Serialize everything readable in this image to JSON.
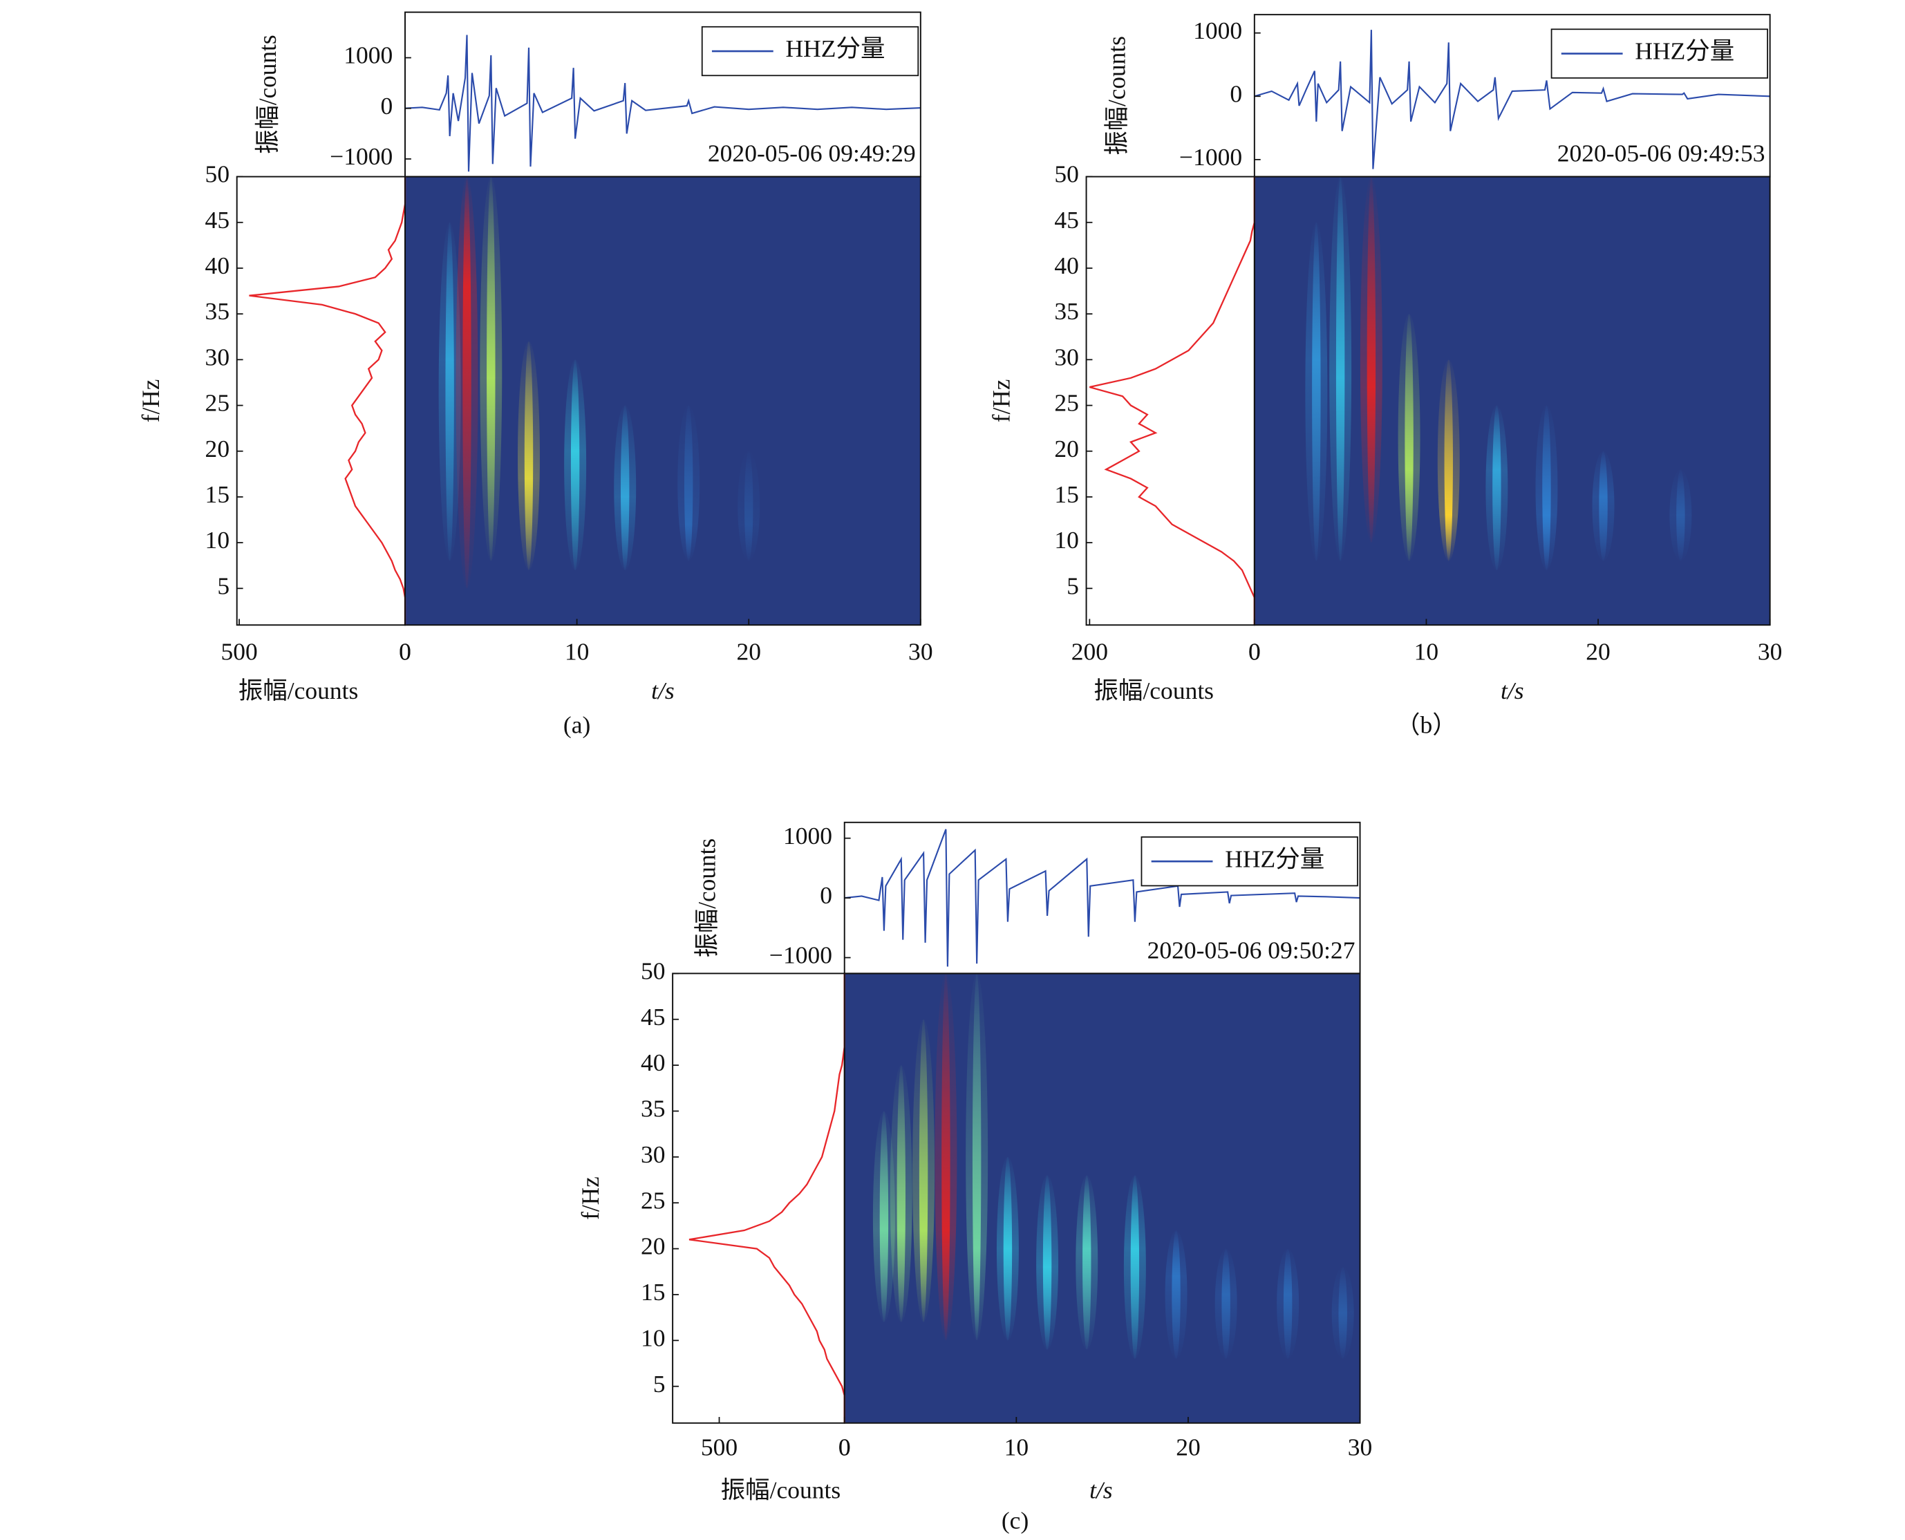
{
  "chart_data": [
    {
      "type": "spectrogram",
      "label": "(a)",
      "xlabel": "t/s",
      "ylabel": "f/Hz",
      "xlim": [
        0,
        30
      ],
      "ylim": [
        1,
        50
      ],
      "xticks": [
        0,
        10,
        20,
        30
      ],
      "yticks": [
        5,
        10,
        15,
        20,
        25,
        30,
        35,
        40,
        45,
        50
      ],
      "bursts": [
        {
          "t": 2.6,
          "f": [
            8,
            45
          ],
          "peak": 30,
          "level": 0.4
        },
        {
          "t": 3.6,
          "f": [
            5,
            50
          ],
          "peak": 38,
          "level": 1.0
        },
        {
          "t": 5.0,
          "f": [
            8,
            50
          ],
          "peak": 28,
          "level": 0.7
        },
        {
          "t": 7.2,
          "f": [
            7,
            32
          ],
          "peak": 17,
          "level": 0.8
        },
        {
          "t": 9.9,
          "f": [
            7,
            30
          ],
          "peak": 20,
          "level": 0.5
        },
        {
          "t": 12.8,
          "f": [
            7,
            25
          ],
          "peak": 15,
          "level": 0.4
        },
        {
          "t": 16.5,
          "f": [
            8,
            25
          ],
          "peak": 12,
          "level": 0.2
        },
        {
          "t": 20,
          "f": [
            8,
            20
          ],
          "peak": 12,
          "level": 0.1
        }
      ],
      "waveform": {
        "type": "line",
        "ylabel": "振幅/counts",
        "annotation": "2020-05-06 09:49:29",
        "legend": "upper right",
        "ylim": [
          -1350,
          1900
        ],
        "yticks": [
          {
            "value": -1000,
            "label": "−1000"
          },
          0,
          1000
        ],
        "series": [
          {
            "name": "HHZ分量",
            "color": "#2b4bab",
            "x": [
              0,
              1,
              2,
              2.4,
              2.5,
              2.6,
              2.8,
              3.1,
              3.5,
              3.6,
              3.7,
              3.9,
              4.3,
              4.9,
              5.0,
              5.1,
              5.3,
              5.8,
              7.1,
              7.2,
              7.3,
              7.5,
              8.0,
              9.7,
              9.8,
              9.9,
              10.2,
              11.0,
              12.7,
              12.8,
              12.9,
              13.2,
              14.0,
              16.4,
              16.5,
              16.7,
              18,
              20,
              22,
              24,
              26,
              28,
              30
            ],
            "values": [
              0,
              20,
              -30,
              300,
              650,
              -550,
              300,
              -250,
              600,
              1450,
              -1250,
              700,
              -300,
              250,
              1050,
              -1100,
              400,
              -150,
              100,
              1200,
              -1150,
              300,
              -80,
              200,
              800,
              -600,
              200,
              -50,
              150,
              500,
              -500,
              150,
              -40,
              50,
              150,
              -100,
              30,
              -20,
              20,
              -20,
              20,
              -20,
              10
            ]
          }
        ]
      },
      "spectrum": {
        "type": "line",
        "xlabel": "振幅/counts",
        "color": "#e8262a",
        "xlim": [
          507,
          0
        ],
        "xticks": [
          500,
          0
        ],
        "y": [
          1,
          2,
          3,
          4,
          5,
          6,
          7,
          8,
          9,
          10,
          11,
          12,
          13,
          14,
          15,
          16,
          17,
          18,
          19,
          20,
          21,
          22,
          23,
          24,
          25,
          26,
          27,
          28,
          29,
          30,
          31,
          32,
          33,
          34,
          35,
          36,
          37,
          38,
          39,
          40,
          41,
          42,
          43,
          44,
          45,
          46,
          47,
          48,
          49,
          50
        ],
        "values": [
          0,
          0,
          0,
          0,
          5,
          15,
          30,
          40,
          55,
          70,
          90,
          110,
          130,
          150,
          160,
          170,
          180,
          160,
          170,
          150,
          140,
          120,
          130,
          150,
          160,
          140,
          120,
          100,
          110,
          80,
          70,
          90,
          60,
          80,
          150,
          250,
          470,
          200,
          90,
          60,
          40,
          50,
          30,
          20,
          10,
          5,
          0,
          0,
          0,
          0
        ]
      }
    },
    {
      "type": "spectrogram",
      "label": "（b）",
      "xlabel": "t/s",
      "ylabel": "f/Hz",
      "xlim": [
        0,
        30
      ],
      "ylim": [
        1,
        50
      ],
      "xticks": [
        0,
        10,
        20,
        30
      ],
      "yticks": [
        5,
        10,
        15,
        20,
        25,
        30,
        35,
        40,
        45,
        50
      ],
      "bursts": [
        {
          "t": 3.6,
          "f": [
            8,
            45
          ],
          "peak": 30,
          "level": 0.35
        },
        {
          "t": 5.0,
          "f": [
            8,
            50
          ],
          "peak": 28,
          "level": 0.45
        },
        {
          "t": 6.8,
          "f": [
            10,
            50
          ],
          "peak": 27,
          "level": 1.0
        },
        {
          "t": 9.0,
          "f": [
            8,
            35
          ],
          "peak": 18,
          "level": 0.7
        },
        {
          "t": 11.3,
          "f": [
            8,
            30
          ],
          "peak": 13,
          "level": 0.85
        },
        {
          "t": 14.1,
          "f": [
            7,
            25
          ],
          "peak": 18,
          "level": 0.4
        },
        {
          "t": 17,
          "f": [
            7,
            25
          ],
          "peak": 13,
          "level": 0.3
        },
        {
          "t": 20.3,
          "f": [
            8,
            20
          ],
          "peak": 15,
          "level": 0.25
        },
        {
          "t": 24.8,
          "f": [
            8,
            18
          ],
          "peak": 13,
          "level": 0.15
        }
      ],
      "waveform": {
        "type": "line",
        "ylabel": "振幅/counts",
        "annotation": "2020-05-06 09:49:53",
        "legend": "upper right",
        "ylim": [
          -1270,
          1290
        ],
        "yticks": [
          {
            "value": -1000,
            "label": "−1000"
          },
          0,
          1000
        ],
        "series": [
          {
            "name": "HHZ分量",
            "color": "#2b4bab",
            "x": [
              0,
              1,
              2,
              2.5,
              2.6,
              3,
              3.5,
              3.6,
              3.7,
              4.2,
              4.9,
              5.0,
              5.1,
              5.6,
              6.7,
              6.8,
              6.9,
              7.3,
              8.0,
              8.9,
              9.0,
              9.1,
              9.6,
              10.5,
              11.2,
              11.3,
              11.4,
              12,
              13,
              13.9,
              14.0,
              14.2,
              15,
              16.9,
              17.0,
              17.2,
              18.5,
              20.2,
              20.3,
              20.5,
              22,
              24.9,
              25,
              25.2,
              27,
              30
            ],
            "values": [
              0,
              80,
              -60,
              200,
              -150,
              100,
              400,
              -400,
              200,
              -100,
              100,
              550,
              -550,
              150,
              -100,
              1050,
              -1150,
              300,
              -120,
              100,
              550,
              -400,
              150,
              -100,
              200,
              850,
              -550,
              200,
              -80,
              100,
              300,
              -350,
              80,
              100,
              250,
              -200,
              60,
              50,
              120,
              -80,
              40,
              30,
              50,
              -40,
              30,
              0
            ]
          }
        ]
      },
      "spectrum": {
        "type": "line",
        "xlabel": "振幅/counts",
        "color": "#e8262a",
        "xlim": [
          204,
          0
        ],
        "xticks": [
          200,
          0
        ],
        "y": [
          1,
          2,
          3,
          4,
          5,
          6,
          7,
          8,
          9,
          10,
          11,
          12,
          13,
          14,
          15,
          16,
          17,
          18,
          19,
          20,
          21,
          22,
          23,
          24,
          25,
          26,
          27,
          28,
          29,
          30,
          31,
          32,
          33,
          34,
          35,
          36,
          37,
          38,
          39,
          40,
          41,
          42,
          43,
          44,
          45,
          46,
          47,
          48,
          49,
          50
        ],
        "values": [
          0,
          0,
          0,
          0,
          5,
          10,
          15,
          25,
          40,
          60,
          80,
          100,
          110,
          120,
          140,
          130,
          150,
          180,
          160,
          140,
          150,
          120,
          140,
          130,
          150,
          160,
          200,
          150,
          120,
          100,
          80,
          70,
          60,
          50,
          45,
          40,
          35,
          30,
          25,
          20,
          15,
          10,
          5,
          3,
          0,
          0,
          0,
          0,
          0,
          0
        ]
      }
    },
    {
      "type": "spectrogram",
      "label": "(c)",
      "xlabel": "t/s",
      "ylabel": "f/Hz",
      "xlim": [
        0,
        30
      ],
      "ylim": [
        1,
        50
      ],
      "xticks": [
        0,
        10,
        20,
        30
      ],
      "yticks": [
        5,
        10,
        15,
        20,
        25,
        30,
        35,
        40,
        45,
        50
      ],
      "bursts": [
        {
          "t": 2.3,
          "f": [
            12,
            35
          ],
          "peak": 22,
          "level": 0.6
        },
        {
          "t": 3.3,
          "f": [
            12,
            40
          ],
          "peak": 22,
          "level": 0.65
        },
        {
          "t": 4.6,
          "f": [
            12,
            45
          ],
          "peak": 22,
          "level": 0.7
        },
        {
          "t": 5.9,
          "f": [
            10,
            50
          ],
          "peak": 22,
          "level": 1.0
        },
        {
          "t": 7.7,
          "f": [
            10,
            50
          ],
          "peak": 20,
          "level": 0.6
        },
        {
          "t": 9.5,
          "f": [
            10,
            30
          ],
          "peak": 20,
          "level": 0.5
        },
        {
          "t": 11.8,
          "f": [
            9,
            28
          ],
          "peak": 18,
          "level": 0.5
        },
        {
          "t": 14.1,
          "f": [
            9,
            28
          ],
          "peak": 20,
          "level": 0.55
        },
        {
          "t": 16.9,
          "f": [
            8,
            28
          ],
          "peak": 20,
          "level": 0.5
        },
        {
          "t": 19.3,
          "f": [
            8,
            22
          ],
          "peak": 17,
          "level": 0.25
        },
        {
          "t": 22.2,
          "f": [
            8,
            20
          ],
          "peak": 15,
          "level": 0.2
        },
        {
          "t": 25.8,
          "f": [
            8,
            20
          ],
          "peak": 15,
          "level": 0.2
        },
        {
          "t": 29,
          "f": [
            8,
            18
          ],
          "peak": 13,
          "level": 0.15
        }
      ],
      "waveform": {
        "type": "line",
        "ylabel": "振幅/counts",
        "annotation": "2020-05-06 09:50:27",
        "legend": "upper right",
        "ylim": [
          -1265,
          1265
        ],
        "yticks": [
          {
            "value": -1000,
            "label": "−1000"
          },
          0,
          1000
        ],
        "series": [
          {
            "name": "HHZ分量",
            "color": "#2b4bab",
            "x": [
              0,
              1,
              2,
              2.2,
              2.3,
              2.4,
              3.3,
              3.4,
              3.5,
              4.6,
              4.7,
              4.8,
              5.9,
              6.0,
              6.1,
              7.6,
              7.7,
              7.8,
              9.4,
              9.5,
              9.6,
              11.7,
              11.8,
              11.9,
              14.1,
              14.2,
              14.3,
              16.8,
              16.9,
              17.0,
              19.4,
              19.5,
              19.6,
              22.3,
              22.4,
              22.5,
              26.2,
              26.3,
              26.4,
              28,
              30
            ],
            "values": [
              0,
              30,
              -40,
              350,
              -550,
              200,
              650,
              -700,
              300,
              750,
              -750,
              300,
              1150,
              -1150,
              400,
              800,
              -1100,
              300,
              650,
              -400,
              150,
              450,
              -300,
              120,
              650,
              -650,
              200,
              300,
              -400,
              100,
              200,
              -150,
              60,
              100,
              -90,
              40,
              80,
              -70,
              30,
              20,
              0
            ]
          }
        ]
      },
      "spectrum": {
        "type": "line",
        "xlabel": "振幅/counts",
        "color": "#e8262a",
        "xlim": [
          686,
          0
        ],
        "xticks": [
          500,
          0
        ],
        "y": [
          1,
          2,
          3,
          4,
          5,
          6,
          7,
          8,
          9,
          10,
          11,
          12,
          13,
          14,
          15,
          16,
          17,
          18,
          19,
          20,
          21,
          22,
          23,
          24,
          25,
          26,
          27,
          28,
          29,
          30,
          31,
          32,
          33,
          34,
          35,
          36,
          37,
          38,
          39,
          40,
          41,
          42,
          43,
          44,
          45,
          46,
          47,
          48,
          49,
          50
        ],
        "values": [
          0,
          0,
          0,
          0,
          10,
          30,
          50,
          70,
          80,
          100,
          110,
          130,
          150,
          170,
          200,
          220,
          250,
          280,
          300,
          350,
          620,
          400,
          300,
          250,
          220,
          180,
          150,
          130,
          110,
          90,
          80,
          70,
          60,
          50,
          40,
          35,
          30,
          25,
          20,
          10,
          5,
          0,
          0,
          0,
          0,
          0,
          0,
          0,
          0,
          0
        ]
      }
    }
  ]
}
